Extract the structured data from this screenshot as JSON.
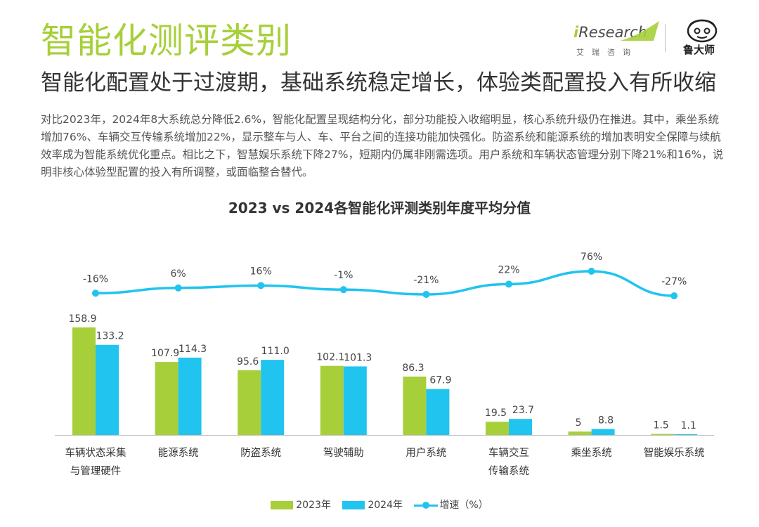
{
  "header": {
    "main_title": "智能化测评类别",
    "subtitle": "智能化配置处于过渡期，基础系统稳定增长，体验类配置投入有所收缩",
    "description": "对比2023年，2024年8大系统总分降低2.6%，智能化配置呈现结构分化，部分功能投入收缩明显，核心系统升级仍在推进。其中，乘坐系统增加76%、车辆交互传输系统增加22%，显示整车与人、车、平台之间的连接功能加快强化。防盗系统和能源系统的增加表明安全保障与续航效率成为智能系统优化重点。相比之下，智慧娱乐系统下降27%，短期内仍属非刚需选项。用户系统和车辆状态管理分别下降21%和16%，说明非核心体验型配置的投入有所调整，或面临整合替代。"
  },
  "brand": {
    "iresearch_i": "i",
    "iresearch_word": "Research",
    "iresearch_cn": "艾瑞咨询",
    "partner_name": "鲁大师"
  },
  "colors": {
    "green": "#a7cf3a",
    "blue": "#21c4ef",
    "line": "#21c4ef"
  },
  "chart_data": {
    "type": "bar",
    "title": "2023 vs 2024各智能化评测类别年度平均分值",
    "categories": [
      [
        "车辆状态采集",
        "与管理硬件"
      ],
      [
        "能源系统"
      ],
      [
        "防盗系统"
      ],
      [
        "驾驶辅助"
      ],
      [
        "用户系统"
      ],
      [
        "车辆交互",
        "传输系统"
      ],
      [
        "乘坐系统"
      ],
      [
        "智能娱乐系统"
      ]
    ],
    "series": [
      {
        "name": "2023年",
        "values": [
          158.9,
          107.9,
          95.6,
          102.1,
          86.3,
          19.5,
          5,
          1.5
        ],
        "labels": [
          "158.9",
          "107.9",
          "95.6",
          "102.1",
          "86.3",
          "19.5",
          "5",
          "1.5"
        ]
      },
      {
        "name": "2024年",
        "values": [
          133.2,
          114.3,
          111.0,
          101.3,
          67.9,
          23.7,
          8.8,
          1.1
        ],
        "labels": [
          "133.2",
          "114.3",
          "111.0",
          "101.3",
          "67.9",
          "23.7",
          "8.8",
          "1.1"
        ]
      }
    ],
    "growth": {
      "name": "增速（%）",
      "values": [
        -16,
        6,
        16,
        -1,
        -21,
        22,
        76,
        -27
      ],
      "labels": [
        "-16%",
        "6%",
        "16%",
        "-1%",
        "-21%",
        "22%",
        "76%",
        "-27%"
      ]
    },
    "ylim": [
      0,
      160
    ],
    "growth_ylim": [
      -100,
      80
    ],
    "legend_position": "bottom"
  }
}
